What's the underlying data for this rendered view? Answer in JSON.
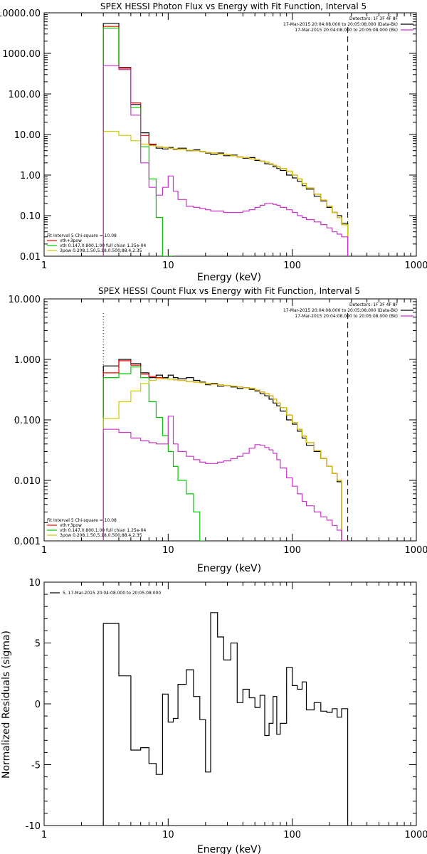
{
  "chart_data": [
    {
      "type": "line",
      "title": "SPEX HESSI Photon Flux vs Energy with Fit Function, Interval 5",
      "xlabel": "Energy (keV)",
      "ylabel": "",
      "x_scale": "log",
      "y_scale": "log",
      "xlim": [
        1,
        1000
      ],
      "ylim": [
        0.01,
        10000
      ],
      "x_tick_labels": [
        "1",
        "10",
        "100",
        "1000"
      ],
      "x_tick_values": [
        1,
        10,
        100,
        1000
      ],
      "y_tick_labels": [
        "0.01",
        "0.10",
        "1.00",
        "10.00",
        "100.00",
        "1000.00",
        "10000.00"
      ],
      "y_tick_values": [
        0.01,
        0.1,
        1,
        10,
        100,
        1000,
        10000
      ],
      "legend_top_right": [
        {
          "text": "Detectors: 1F 3F 4F 8F",
          "color": "#000000"
        },
        {
          "text": "17-Mar-2015 20:04:08.000 to 20:05:08.000 (Data-Bk)",
          "color": "#000000"
        },
        {
          "text": "17-Mar-2015 20:04:08.000 to 20:05:08.000 (Bk)",
          "color": "#cc33cc"
        }
      ],
      "legend_bottom_left": [
        {
          "text": "Fit Interval 5   Chi-square = 10.08",
          "color": "#000000"
        },
        {
          "text": "vth+3pow",
          "color": "#ff0000"
        },
        {
          "text": "vth 0.147,0.800,1.00  full chian 1.25e-04",
          "color": "#00cc00"
        },
        {
          "text": "3pow 0.208,1.50,5.18,0.500,88.4,2.35",
          "color": "#cccc00"
        }
      ],
      "vlines": [
        {
          "x": 3,
          "style": "dotted"
        },
        {
          "x": 280,
          "style": "dashed"
        }
      ],
      "bin_edges": [
        3,
        4,
        5,
        6,
        7,
        8,
        9,
        10,
        11,
        12,
        14,
        16,
        18,
        20,
        22,
        25,
        28,
        32,
        36,
        40,
        45,
        50,
        55,
        60,
        65,
        70,
        75,
        80,
        90,
        100,
        110,
        120,
        130,
        150,
        170,
        190,
        210,
        230,
        250,
        280
      ],
      "series": [
        {
          "name": "Data-Bk",
          "color": "#000000",
          "values": [
            5500,
            450,
            55,
            11,
            5.5,
            4.6,
            4.4,
            4.8,
            4.3,
            4.6,
            4.0,
            4.2,
            3.8,
            3.5,
            3.2,
            3.5,
            3.0,
            3.1,
            2.8,
            2.6,
            2.7,
            2.3,
            2.2,
            1.9,
            1.85,
            1.6,
            1.45,
            1.3,
            1.0,
            0.85,
            0.7,
            0.55,
            0.45,
            0.3,
            0.23,
            0.16,
            0.12,
            0.1,
            0.065
          ]
        },
        {
          "name": "vth+3pow",
          "color": "#ff0000",
          "values": [
            4600,
            430,
            60,
            9.5,
            5.8,
            5.0,
            4.8,
            4.6,
            4.4,
            4.3,
            4.1,
            4.0,
            3.8,
            3.6,
            3.5,
            3.3,
            3.2,
            3.0,
            2.8,
            2.7,
            2.5,
            2.4,
            2.2,
            2.1,
            1.9,
            1.75,
            1.6,
            1.45,
            1.25,
            1.0,
            0.8,
            0.62,
            0.48,
            0.34,
            0.24,
            0.17,
            0.12,
            0.09,
            0.06
          ]
        },
        {
          "name": "vth",
          "color": "#00cc00",
          "values": [
            4200,
            400,
            46,
            5.0,
            0.8,
            0.09,
            0.008,
            0.0008
          ]
        },
        {
          "name": "3pow",
          "color": "#cccc00",
          "values": [
            12,
            9.5,
            7.0,
            5.8,
            5.3,
            5.0,
            4.8,
            4.6,
            4.4,
            4.3,
            4.1,
            4.0,
            3.8,
            3.6,
            3.5,
            3.3,
            3.2,
            3.0,
            2.8,
            2.7,
            2.5,
            2.4,
            2.2,
            2.1,
            1.9,
            1.75,
            1.6,
            1.45,
            1.25,
            1.0,
            0.8,
            0.62,
            0.48,
            0.34,
            0.24,
            0.17,
            0.12,
            0.09,
            0.06
          ]
        },
        {
          "name": "Bk",
          "color": "#cc33cc",
          "values": [
            500,
            400,
            30,
            2.0,
            0.5,
            0.32,
            0.5,
            0.95,
            0.4,
            0.25,
            0.17,
            0.16,
            0.15,
            0.14,
            0.13,
            0.13,
            0.12,
            0.12,
            0.12,
            0.13,
            0.14,
            0.16,
            0.18,
            0.2,
            0.2,
            0.19,
            0.18,
            0.16,
            0.14,
            0.12,
            0.1,
            0.09,
            0.08,
            0.07,
            0.06,
            0.05,
            0.04,
            0.035,
            0.03
          ]
        }
      ]
    },
    {
      "type": "line",
      "title": "SPEX HESSI Count Flux vs Energy with Fit Function, Interval 5",
      "xlabel": "Energy (keV)",
      "ylabel": "",
      "x_scale": "log",
      "y_scale": "log",
      "xlim": [
        1,
        1000
      ],
      "ylim": [
        0.001,
        10
      ],
      "x_tick_labels": [
        "1",
        "10",
        "100",
        "1000"
      ],
      "x_tick_values": [
        1,
        10,
        100,
        1000
      ],
      "y_tick_labels": [
        "0.001",
        "0.010",
        "0.100",
        "1.000",
        "10.000"
      ],
      "y_tick_values": [
        0.001,
        0.01,
        0.1,
        1,
        10
      ],
      "legend_top_right": [
        {
          "text": "Detectors: 1F 3F 4F 8F",
          "color": "#000000"
        },
        {
          "text": "17-Mar-2015 20:04:08.000 to 20:05:08.000 (Data-Bk)",
          "color": "#000000"
        },
        {
          "text": "17-Mar-2015 20:04:08.000 to 20:05:08.000 (Bk)",
          "color": "#cc33cc"
        }
      ],
      "legend_bottom_left": [
        {
          "text": "Fit Interval 5   Chi-square = 10.08",
          "color": "#000000"
        },
        {
          "text": "vth+3pow",
          "color": "#ff0000"
        },
        {
          "text": "vth 0.147,0.800,1.00  full chian 1.25e-04",
          "color": "#00cc00"
        },
        {
          "text": "3pow 0.208,1.50,5.18,0.500,88.4,2.35",
          "color": "#cccc00"
        }
      ],
      "vlines": [
        {
          "x": 3,
          "style": "dotted"
        },
        {
          "x": 280,
          "style": "dashed"
        }
      ],
      "bin_edges": [
        3,
        4,
        5,
        6,
        7,
        8,
        9,
        10,
        11,
        12,
        14,
        16,
        18,
        20,
        22,
        25,
        28,
        32,
        36,
        40,
        45,
        50,
        55,
        60,
        65,
        70,
        75,
        80,
        90,
        100,
        110,
        120,
        130,
        150,
        170,
        190,
        210,
        230,
        250,
        280
      ],
      "series": [
        {
          "name": "Data-Bk",
          "color": "#000000",
          "values": [
            0.78,
            1.0,
            0.85,
            0.6,
            0.5,
            0.55,
            0.5,
            0.55,
            0.5,
            0.48,
            0.5,
            0.45,
            0.42,
            0.38,
            0.4,
            0.36,
            0.37,
            0.35,
            0.33,
            0.34,
            0.32,
            0.3,
            0.27,
            0.25,
            0.22,
            0.19,
            0.17,
            0.14,
            0.1,
            0.085,
            0.065,
            0.05,
            0.038,
            0.03,
            0.023,
            0.017,
            0.013,
            0.0095,
            0.001
          ]
        },
        {
          "name": "vth+3pow",
          "color": "#ff0000",
          "values": [
            0.6,
            0.95,
            0.8,
            0.57,
            0.52,
            0.5,
            0.48,
            0.47,
            0.46,
            0.45,
            0.43,
            0.42,
            0.41,
            0.4,
            0.39,
            0.38,
            0.37,
            0.36,
            0.35,
            0.34,
            0.33,
            0.31,
            0.29,
            0.27,
            0.25,
            0.22,
            0.19,
            0.16,
            0.12,
            0.09,
            0.07,
            0.054,
            0.042,
            0.031,
            0.023,
            0.017,
            0.013,
            0.01,
            0.001
          ]
        },
        {
          "name": "vth",
          "color": "#00cc00",
          "values": [
            0.5,
            0.58,
            0.75,
            0.5,
            0.2,
            0.11,
            0.055,
            0.03,
            0.017,
            0.01,
            0.006,
            0.003,
            0.0005
          ]
        },
        {
          "name": "3pow",
          "color": "#cccc00",
          "values": [
            0.105,
            0.2,
            0.3,
            0.4,
            0.45,
            0.48,
            0.48,
            0.47,
            0.46,
            0.45,
            0.43,
            0.42,
            0.41,
            0.4,
            0.39,
            0.38,
            0.37,
            0.36,
            0.35,
            0.34,
            0.33,
            0.31,
            0.29,
            0.27,
            0.25,
            0.22,
            0.19,
            0.16,
            0.12,
            0.09,
            0.07,
            0.054,
            0.042,
            0.031,
            0.023,
            0.017,
            0.013,
            0.01,
            0.001
          ]
        },
        {
          "name": "Bk",
          "color": "#cc33cc",
          "values": [
            0.07,
            0.062,
            0.05,
            0.045,
            0.042,
            0.04,
            0.04,
            0.115,
            0.04,
            0.03,
            0.025,
            0.022,
            0.02,
            0.019,
            0.019,
            0.02,
            0.021,
            0.023,
            0.025,
            0.028,
            0.034,
            0.039,
            0.038,
            0.035,
            0.032,
            0.028,
            0.022,
            0.016,
            0.011,
            0.008,
            0.006,
            0.0045,
            0.0038,
            0.003,
            0.0025,
            0.0022,
            0.0018,
            0.0015,
            0.001
          ]
        }
      ]
    },
    {
      "type": "line",
      "title": "",
      "xlabel": "Energy (keV)",
      "ylabel": "Normalized Residuals (sigma)",
      "x_scale": "log",
      "y_scale": "linear",
      "xlim": [
        1,
        1000
      ],
      "ylim": [
        -10,
        10
      ],
      "x_tick_labels": [
        "1",
        "10",
        "100",
        "1000"
      ],
      "x_tick_values": [
        1,
        10,
        100,
        1000
      ],
      "y_tick_labels": [
        "-10",
        "-5",
        "0",
        "5",
        "10"
      ],
      "y_tick_values": [
        -10,
        -5,
        0,
        5,
        10
      ],
      "legend_top_left": [
        {
          "text": "5, 17-Mar-2015 20:04:08.000 to 20:05:08.000",
          "color": "#000000"
        }
      ],
      "bin_edges": [
        3,
        4,
        5,
        6,
        7,
        8,
        9,
        10,
        11,
        12,
        14,
        16,
        18,
        20,
        22,
        25,
        28,
        32,
        36,
        40,
        45,
        50,
        55,
        60,
        65,
        70,
        75,
        80,
        90,
        100,
        110,
        120,
        130,
        150,
        170,
        190,
        210,
        230,
        250,
        280
      ],
      "series": [
        {
          "name": "",
          "color": "#000000",
          "drop_to_bottom_at_ends": true,
          "values": [
            6.6,
            2.3,
            -3.8,
            -3.6,
            -4.9,
            -5.8,
            0.8,
            -1.5,
            -1.2,
            1.6,
            2.8,
            0.6,
            -1.3,
            -5.6,
            7.5,
            5.5,
            3.6,
            5.0,
            0.1,
            1.2,
            0.5,
            -0.3,
            0.7,
            -2.6,
            -1.6,
            0.6,
            -2.5,
            -1.6,
            3.0,
            1.5,
            1.2,
            1.8,
            -0.5,
            0.1,
            -0.6,
            -0.7,
            -0.4,
            -1.1,
            -0.4
          ]
        }
      ]
    }
  ]
}
